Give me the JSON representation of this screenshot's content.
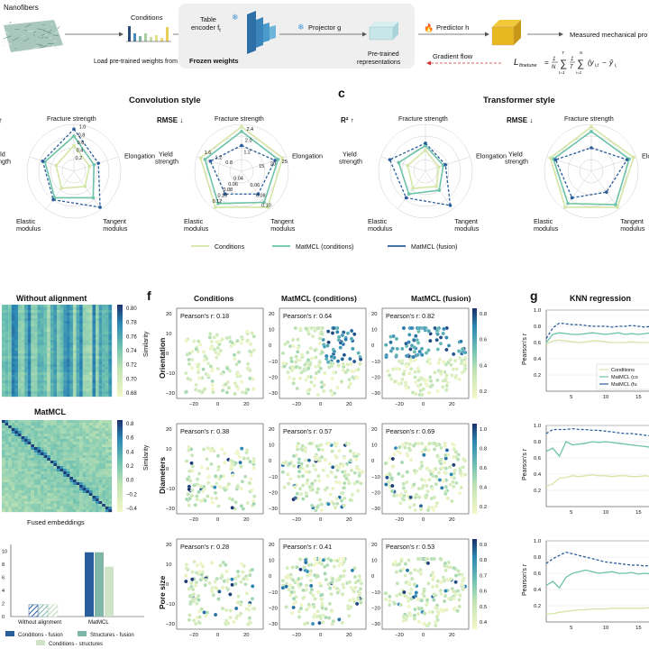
{
  "pipeline": {
    "nanofibers": "Nanofibers",
    "conditions": "Conditions",
    "pretrained_note": "Load pre-trained\nweights from SGPT",
    "table_encoder": "Table\nencoder f",
    "table_encoder_sub": "t",
    "projector": "Projector g",
    "frozen": "Frozen weights",
    "pretrained_reps": "Pre-trained\nrepresentations",
    "predictor": "Predictor h",
    "measured": "Measured mechanical pro",
    "gradient_flow": "Gradient flow",
    "loss_label": "L",
    "loss_sub": "finetune",
    "loss_expr": "= 1/N Σ 1/T Σ (y",
    "loss_idx": "i,t",
    "loss_rest": " − ŷ",
    "loss_idx2": "i,",
    "sum_top1": "T",
    "sum_top2": "N",
    "sum_bot1": "t=1",
    "sum_bot2": "i=1"
  },
  "panel_letters": {
    "c": "c",
    "f": "f",
    "g": "g"
  },
  "radar": {
    "conv_title": "Convolution style",
    "trans_title": "Transformer style",
    "r2_label": "R² ↑",
    "rmse_label": "RMSE ↓",
    "axes": [
      "Fracture strength",
      "Elongation",
      "Tangent\nmodulus",
      "Elastic\nmodulus",
      "Yield\nstrength"
    ],
    "r2_ticks": [
      "0.2",
      "0.4",
      "0.6",
      "0.8",
      "1.0"
    ],
    "rmse_ticks_frac": [
      "1.2",
      "2.0",
      "2.4"
    ],
    "rmse_ticks_yield": [
      "0.8",
      "1.2",
      "1.6"
    ],
    "rmse_ticks_elong": [
      "15",
      "20",
      "25"
    ],
    "rmse_ticks_tang": [
      "0.06",
      "0.08",
      "0.10"
    ],
    "rmse_ticks_elast": [
      "0.04",
      "0.06",
      "0.08",
      "0.10",
      "0.12"
    ],
    "rmse_inner": [
      "0.03",
      "0.02",
      "0.4",
      "0.02",
      "0.02"
    ],
    "legend": [
      "Conditions",
      "MatMCL (conditions)",
      "MatMCL (fusion)"
    ],
    "colors": {
      "conditions": "#d4e6a6",
      "mat_cond": "#6cc3a8",
      "fusion": "#2a5d9b"
    },
    "conv_r2": {
      "conditions": [
        0.55,
        0.35,
        0.4,
        0.45,
        0.4
      ],
      "mat_cond": [
        0.75,
        0.45,
        0.7,
        0.7,
        0.65
      ],
      "fusion": [
        0.9,
        0.55,
        0.95,
        0.75,
        0.7
      ]
    },
    "conv_rmse": {
      "conditions": [
        0.95,
        0.92,
        0.95,
        0.95,
        0.92
      ],
      "mat_cond": [
        0.85,
        0.82,
        0.82,
        0.85,
        0.82
      ],
      "fusion": [
        0.55,
        0.75,
        0.6,
        0.6,
        0.7
      ]
    },
    "trans_r2": {
      "conditions": [
        0.45,
        0.3,
        0.4,
        0.45,
        0.4
      ],
      "mat_cond": [
        0.55,
        0.4,
        0.5,
        0.6,
        0.6
      ],
      "fusion": [
        0.6,
        0.45,
        0.9,
        0.7,
        0.8
      ]
    },
    "trans_rmse": {
      "conditions": [
        0.95,
        0.95,
        0.95,
        0.95,
        0.92
      ],
      "mat_cond": [
        0.85,
        0.85,
        0.88,
        0.85,
        0.85
      ],
      "fusion": [
        0.5,
        0.8,
        0.55,
        0.7,
        0.8
      ]
    }
  },
  "heatmaps": {
    "without_title": "Without alignment",
    "matmcl_title": "MatMCL",
    "fused_caption": "Fused embeddings",
    "similarity_label": "Similarity",
    "cb1_ticks": [
      "0.80",
      "0.78",
      "0.76",
      "0.74",
      "0.72",
      "0.70",
      "0.68"
    ],
    "cb2_ticks": [
      "0.8",
      "0.6",
      "0.4",
      "0.2",
      "0.0",
      "−0.2",
      "−0.4"
    ]
  },
  "bars": {
    "categories": [
      "Without alignment",
      "MatMCL"
    ],
    "yticks": [
      "0",
      "2",
      "4",
      "6",
      "8",
      "10"
    ],
    "series": [
      {
        "name": "Conditions - fusion",
        "values": [
          1.8,
          9.8
        ],
        "color": "#2a5d9b"
      },
      {
        "name": "Structures - fusion",
        "values": [
          1.8,
          9.8
        ],
        "color": "#7fb6a8"
      },
      {
        "name": "Conditions - structures",
        "values": [
          1.8,
          7.6
        ],
        "color": "#cfe3c8"
      }
    ]
  },
  "tsne": {
    "col_titles": [
      "Conditions",
      "MatMCL (conditions)",
      "MatMCL (fusion)"
    ],
    "row_titles": [
      "Orientation",
      "Diameters",
      "Pore size"
    ],
    "pearson_prefix": "Pearson's r: ",
    "pearson": [
      [
        "0.18",
        "0.64",
        "0.82"
      ],
      [
        "0.38",
        "0.57",
        "0.69"
      ],
      [
        "0.28",
        "0.41",
        "0.53"
      ]
    ],
    "xticks": [
      "−20",
      "0",
      "20"
    ],
    "yticks": [
      "20",
      "10",
      "0",
      "−10",
      "−20",
      "−30"
    ],
    "cb_ticks": [
      [
        "0.8",
        "0.6",
        "0.4",
        "0.2"
      ],
      [
        "1.0",
        "0.8",
        "0.6",
        "0.4",
        "0.2"
      ],
      [
        "0.9",
        "0.8",
        "0.7",
        "0.6",
        "0.5",
        "0.4"
      ]
    ]
  },
  "knn": {
    "title": "KNN regression",
    "ylabel": "Pearson's r",
    "xticks": [
      "5",
      "10",
      "15"
    ],
    "yticks": [
      "0.2",
      "0.4",
      "0.6",
      "0.8",
      "1.0"
    ],
    "legend": [
      "Conditions",
      "MatMCL (co",
      "MatMCL (fu"
    ],
    "chart_data": [
      {
        "type": "line",
        "x": [
          1,
          2,
          3,
          4,
          5,
          6,
          7,
          8,
          9,
          10,
          11,
          12,
          13,
          14,
          15,
          16,
          17,
          18
        ],
        "ylim": [
          0,
          1.0
        ],
        "series": [
          {
            "name": "Conditions",
            "values": [
              0.58,
              0.62,
              0.63,
              0.62,
              0.61,
              0.6,
              0.61,
              0.62,
              0.62,
              0.61,
              0.6,
              0.6,
              0.6,
              0.61,
              0.6,
              0.6,
              0.6,
              0.6
            ]
          },
          {
            "name": "MatMCL (conditions)",
            "values": [
              0.6,
              0.7,
              0.72,
              0.71,
              0.7,
              0.7,
              0.71,
              0.72,
              0.71,
              0.7,
              0.71,
              0.72,
              0.7,
              0.71,
              0.7,
              0.71,
              0.72,
              0.71
            ]
          },
          {
            "name": "MatMCL (fusion)",
            "values": [
              0.65,
              0.78,
              0.84,
              0.83,
              0.82,
              0.82,
              0.81,
              0.8,
              0.8,
              0.8,
              0.79,
              0.8,
              0.8,
              0.81,
              0.8,
              0.79,
              0.8,
              0.8
            ]
          }
        ]
      },
      {
        "type": "line",
        "x": [
          1,
          2,
          3,
          4,
          5,
          6,
          7,
          8,
          9,
          10,
          11,
          12,
          13,
          14,
          15,
          16,
          17,
          18
        ],
        "ylim": [
          0,
          1.0
        ],
        "series": [
          {
            "name": "Conditions",
            "values": [
              0.25,
              0.28,
              0.35,
              0.36,
              0.38,
              0.37,
              0.38,
              0.39,
              0.38,
              0.38,
              0.37,
              0.38,
              0.38,
              0.37,
              0.37,
              0.38,
              0.37,
              0.37
            ]
          },
          {
            "name": "MatMCL (conditions)",
            "values": [
              0.68,
              0.72,
              0.62,
              0.8,
              0.76,
              0.77,
              0.78,
              0.8,
              0.79,
              0.8,
              0.79,
              0.78,
              0.77,
              0.76,
              0.75,
              0.74,
              0.73,
              0.72
            ]
          },
          {
            "name": "MatMCL (fusion)",
            "values": [
              0.9,
              0.95,
              0.95,
              0.95,
              0.96,
              0.95,
              0.95,
              0.94,
              0.94,
              0.93,
              0.92,
              0.91,
              0.9,
              0.9,
              0.89,
              0.88,
              0.87,
              0.86
            ]
          }
        ]
      },
      {
        "type": "line",
        "x": [
          1,
          2,
          3,
          4,
          5,
          6,
          7,
          8,
          9,
          10,
          11,
          12,
          13,
          14,
          15,
          16,
          17,
          18
        ],
        "ylim": [
          0,
          1.0
        ],
        "series": [
          {
            "name": "Conditions",
            "values": [
              0.1,
              0.1,
              0.12,
              0.13,
              0.14,
              0.15,
              0.15,
              0.16,
              0.16,
              0.16,
              0.17,
              0.17,
              0.17,
              0.17,
              0.17,
              0.17,
              0.18,
              0.17
            ]
          },
          {
            "name": "MatMCL (conditions)",
            "values": [
              0.45,
              0.5,
              0.42,
              0.55,
              0.6,
              0.62,
              0.64,
              0.62,
              0.6,
              0.61,
              0.62,
              0.6,
              0.6,
              0.61,
              0.59,
              0.6,
              0.59,
              0.58
            ]
          },
          {
            "name": "MatMCL (fusion)",
            "values": [
              0.72,
              0.78,
              0.82,
              0.86,
              0.84,
              0.82,
              0.8,
              0.78,
              0.76,
              0.74,
              0.73,
              0.72,
              0.71,
              0.7,
              0.7,
              0.69,
              0.7,
              0.7
            ]
          }
        ]
      }
    ]
  }
}
